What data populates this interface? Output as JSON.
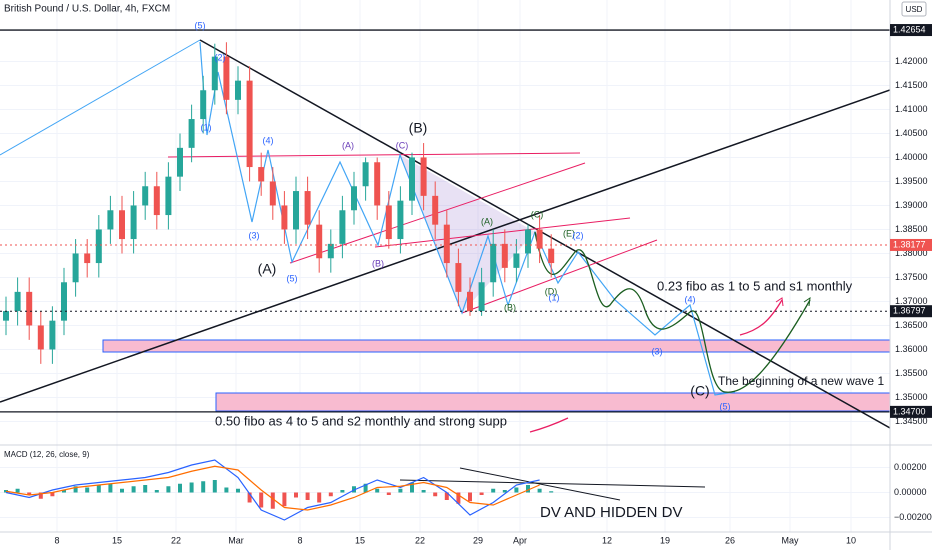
{
  "chart_data": [
    {
      "type": "candlestick",
      "title": "British Pound / U.S. Dollar, 4h, FXCM",
      "currency": "USD",
      "ylim": [
        1.3401,
        1.4328
      ],
      "yticks": [
        {
          "value": 1.345,
          "label": "1.34500"
        },
        {
          "value": 1.35,
          "label": "1.35000"
        },
        {
          "value": 1.355,
          "label": "1.35500"
        },
        {
          "value": 1.36,
          "label": "1.36000"
        },
        {
          "value": 1.365,
          "label": "1.36500"
        },
        {
          "value": 1.37,
          "label": "1.37000"
        },
        {
          "value": 1.375,
          "label": "1.37500"
        },
        {
          "value": 1.38,
          "label": "1.38000"
        },
        {
          "value": 1.385,
          "label": "1.38500"
        },
        {
          "value": 1.39,
          "label": "1.39000"
        },
        {
          "value": 1.395,
          "label": "1.39500"
        },
        {
          "value": 1.4,
          "label": "1.40000"
        },
        {
          "value": 1.405,
          "label": "1.40500"
        },
        {
          "value": 1.41,
          "label": "1.41000"
        },
        {
          "value": 1.415,
          "label": "1.41500"
        },
        {
          "value": 1.42,
          "label": "1.42000"
        }
      ],
      "x_labels": [
        "8",
        "15",
        "22",
        "Mar",
        "8",
        "15",
        "22",
        "29",
        "Apr",
        "12",
        "19",
        "26",
        "May",
        "10"
      ],
      "up_color": "#26a69a",
      "down_color": "#ef5350",
      "open": [
        1.366,
        1.368,
        1.372,
        1.365,
        1.36,
        1.366,
        1.374,
        1.38,
        1.378,
        1.385,
        1.389,
        1.383,
        1.39,
        1.394,
        1.388,
        1.396,
        1.402,
        1.408,
        1.414,
        1.421,
        1.412,
        1.416,
        1.398,
        1.395,
        1.39,
        1.385,
        1.393,
        1.386,
        1.379,
        1.382,
        1.389,
        1.394,
        1.399,
        1.39,
        1.383,
        1.391,
        1.4,
        1.392,
        1.386,
        1.378,
        1.372,
        1.368,
        1.374,
        1.382,
        1.377,
        1.38,
        1.385,
        1.381
      ],
      "high": [
        1.371,
        1.375,
        1.375,
        1.368,
        1.369,
        1.377,
        1.383,
        1.383,
        1.388,
        1.392,
        1.392,
        1.393,
        1.397,
        1.397,
        1.399,
        1.405,
        1.411,
        1.417,
        1.4237,
        1.424,
        1.419,
        1.419,
        1.401,
        1.398,
        1.393,
        1.396,
        1.396,
        1.389,
        1.385,
        1.392,
        1.397,
        1.4,
        1.4,
        1.393,
        1.394,
        1.401,
        1.403,
        1.395,
        1.389,
        1.381,
        1.375,
        1.377,
        1.385,
        1.385,
        1.383,
        1.386,
        1.388,
        1.384
      ],
      "low": [
        1.363,
        1.365,
        1.362,
        1.357,
        1.357,
        1.363,
        1.371,
        1.375,
        1.375,
        1.382,
        1.38,
        1.38,
        1.387,
        1.385,
        1.385,
        1.393,
        1.399,
        1.405,
        1.411,
        1.409,
        1.409,
        1.395,
        1.392,
        1.387,
        1.382,
        1.382,
        1.383,
        1.376,
        1.376,
        1.379,
        1.386,
        1.391,
        1.387,
        1.381,
        1.38,
        1.388,
        1.389,
        1.383,
        1.375,
        1.369,
        1.367,
        1.367,
        1.371,
        1.374,
        1.374,
        1.377,
        1.378,
        1.375
      ],
      "close": [
        1.368,
        1.372,
        1.365,
        1.36,
        1.366,
        1.374,
        1.38,
        1.378,
        1.385,
        1.389,
        1.383,
        1.39,
        1.394,
        1.388,
        1.396,
        1.402,
        1.408,
        1.414,
        1.421,
        1.412,
        1.416,
        1.398,
        1.395,
        1.39,
        1.385,
        1.393,
        1.386,
        1.379,
        1.382,
        1.389,
        1.394,
        1.399,
        1.39,
        1.383,
        1.391,
        1.4,
        1.392,
        1.386,
        1.378,
        1.372,
        1.368,
        1.374,
        1.382,
        1.377,
        1.38,
        1.385,
        1.381,
        1.378
      ],
      "price_tags": [
        {
          "value": 1.42654,
          "label": "1.42654",
          "color": "#131722"
        },
        {
          "value": 1.38177,
          "label": "1.38177",
          "color": "#ef5350"
        },
        {
          "value": 1.36797,
          "label": "1.36797",
          "color": "#131722"
        },
        {
          "value": 1.347,
          "label": "1.34700",
          "color": "#131722"
        }
      ],
      "wave_labels": [
        "(5)",
        "(2)",
        "(1)",
        "(4)",
        "(3)",
        "(5)",
        "(A)",
        "(A)",
        "(B)",
        "(C)",
        "(B)",
        "(A)",
        "(B)",
        "(C)",
        "(D)",
        "(E)",
        "(2)",
        "(1)",
        "(4)",
        "(3)",
        "(5)",
        "(C)"
      ],
      "notes": [
        "0.23 fibo as 1 to 5 and s1 monthly",
        "The beginning of a new wave 1",
        "0.50 fibo as 4 to 5 and s2 monthly and strong supp"
      ]
    },
    {
      "type": "macd",
      "title": "MACD (12, 26, close, 9)",
      "note": "DV AND HIDDEN DV",
      "ylim": [
        -0.0038,
        0.0034
      ],
      "yticks": [
        {
          "value": -0.002,
          "label": "−0.00200"
        },
        {
          "value": 0,
          "label": "0.00000"
        },
        {
          "value": 0.002,
          "label": "0.00200"
        }
      ],
      "histogram": [
        0.0002,
        0.0003,
        -0.0002,
        -0.0005,
        -0.0003,
        0.0002,
        0.0005,
        0.0004,
        0.0006,
        0.0007,
        0.0003,
        0.0005,
        0.0006,
        0.0002,
        0.0005,
        0.0007,
        0.0008,
        0.0009,
        0.001,
        0.0004,
        0.0003,
        -0.0008,
        -0.0012,
        -0.0013,
        -0.0011,
        -0.0004,
        -0.0006,
        -0.0008,
        -0.0003,
        0.0002,
        0.0005,
        0.0007,
        0.0003,
        -0.0002,
        0.0003,
        0.0008,
        0.0002,
        -0.0003,
        -0.0006,
        -0.0009,
        -0.0007,
        -0.0002,
        0.0003,
        0.0002,
        0.0004,
        0.0006,
        0.0003,
        0.0001
      ],
      "series": [
        {
          "name": "MACD",
          "color": "#2962ff",
          "values": [
            0.0,
            -0.0004,
            0.0002,
            0.0006,
            0.0008,
            0.001,
            0.0012,
            0.0016,
            0.0022,
            0.0026,
            0.0012,
            -0.0014,
            -0.0022,
            -0.0012,
            -0.0008,
            0.0002,
            0.001,
            0.0004,
            0.0012,
            0.0,
            -0.0018,
            -0.0008,
            0.0006,
            0.001
          ]
        },
        {
          "name": "Signal",
          "color": "#ff6d00",
          "values": [
            0.0001,
            -0.0002,
            0.0,
            0.0004,
            0.0006,
            0.0008,
            0.001,
            0.0012,
            0.0017,
            0.0021,
            0.0018,
            0.0002,
            -0.0012,
            -0.0014,
            -0.001,
            -0.0004,
            0.0004,
            0.0005,
            0.0008,
            0.0004,
            -0.0008,
            -0.001,
            -0.0002,
            0.0006
          ]
        }
      ]
    }
  ]
}
